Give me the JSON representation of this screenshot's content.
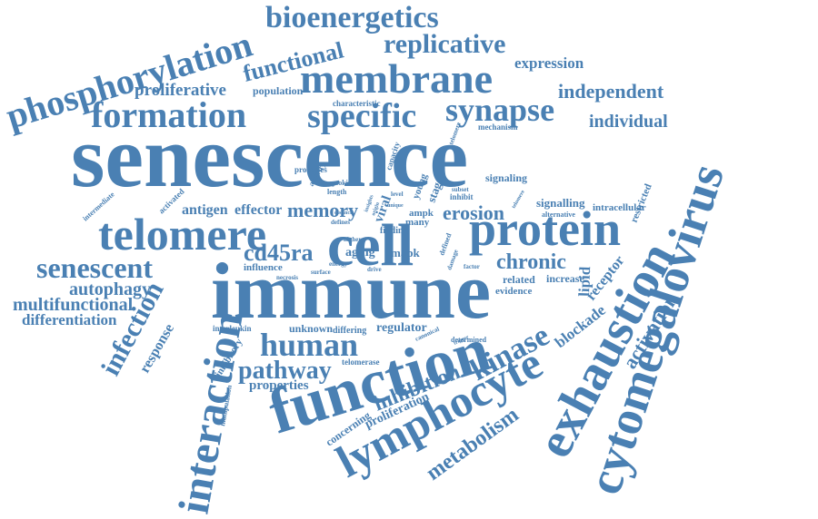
{
  "accent_color": "#4a80b3",
  "words": [
    "senescence",
    "immune",
    "cell",
    "function",
    "telomere",
    "protein",
    "membrane",
    "exhaustion",
    "cytomegalovirus",
    "lymphocyte",
    "interaction",
    "formation",
    "specific",
    "synapse",
    "phosphorylation",
    "bioenergetics",
    "functional",
    "replicative",
    "expression",
    "proliferative",
    "population",
    "independent",
    "characteristic",
    "mechanism",
    "individual",
    "human",
    "kinase",
    "senescent",
    "cd45ra",
    "chronic",
    "erosion",
    "memory",
    "antigen",
    "effector",
    "infection",
    "pathway",
    "inhibition",
    "metabolism",
    "activation",
    "autophagy",
    "multifunctional",
    "differentiation",
    "properties",
    "response",
    "blockade",
    "receptor",
    "lipid",
    "aging",
    "mapk",
    "proliferation",
    "regulator",
    "unknown",
    "differing",
    "interleukin",
    "inhibitory",
    "concerning",
    "manipulation",
    "telomerase",
    "determined",
    "canonical",
    "signaling",
    "signalling",
    "intracellular",
    "restricted",
    "alternative",
    "related",
    "increase",
    "evidence",
    "viral",
    "many",
    "ampk",
    "finding",
    "young",
    "stage",
    "processes",
    "cytokine",
    "length",
    "capacity",
    "activity",
    "activated",
    "intermediate",
    "influence",
    "necrosis",
    "surface",
    "drive",
    "energy",
    "higher",
    "defines",
    "inhibit",
    "subset",
    "telomere",
    "level",
    "defined",
    "damage",
    "factor",
    "trigger",
    "distinct",
    "unique",
    "origin",
    "telomere",
    "insights"
  ]
}
